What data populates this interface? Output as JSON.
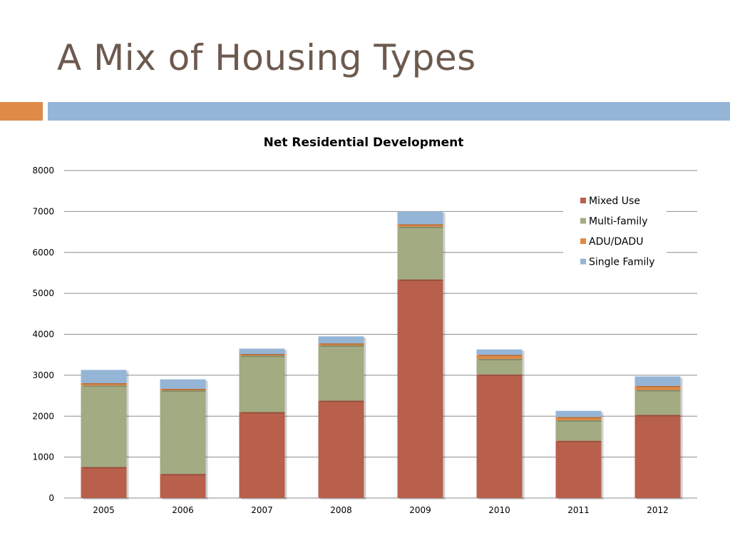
{
  "slide": {
    "title": "A Mix of Housing Types"
  },
  "colors": {
    "title": "#6d5a4f",
    "accent_orange": "#e08a48",
    "accent_blue": "#95b5d6"
  },
  "chart_data": {
    "type": "bar",
    "stacked": true,
    "title": "Net Residential Development",
    "xlabel": "",
    "ylabel": "",
    "ylim": [
      0,
      8000
    ],
    "yticks": [
      0,
      1000,
      2000,
      3000,
      4000,
      5000,
      6000,
      7000,
      8000
    ],
    "grid": true,
    "legend_position": "top-right",
    "categories": [
      "2005",
      "2006",
      "2007",
      "2008",
      "2009",
      "2010",
      "2011",
      "2012"
    ],
    "series": [
      {
        "name": "Mixed Use",
        "color": "#b8604b",
        "values": [
          760,
          590,
          2100,
          2380,
          5340,
          3020,
          1400,
          2030
        ]
      },
      {
        "name": "Multi-family",
        "color": "#a2ab81",
        "values": [
          1990,
          2040,
          1380,
          1350,
          1290,
          380,
          500,
          610
        ]
      },
      {
        "name": "ADU/DADU",
        "color": "#e08a48",
        "values": [
          60,
          40,
          40,
          50,
          60,
          100,
          80,
          100
        ]
      },
      {
        "name": "Single Family",
        "color": "#95b5d6",
        "values": [
          320,
          230,
          130,
          170,
          310,
          130,
          150,
          230
        ]
      }
    ]
  }
}
